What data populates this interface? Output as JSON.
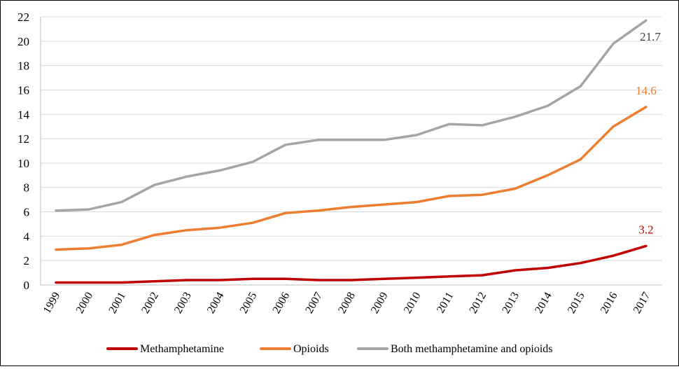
{
  "chart_data": {
    "type": "line",
    "title": "",
    "xlabel": "",
    "ylabel": "",
    "ylim": [
      0,
      22
    ],
    "yticks": [
      0,
      2,
      4,
      6,
      8,
      10,
      12,
      14,
      16,
      18,
      20,
      22
    ],
    "grid": "horizontal",
    "legend": "bottom",
    "categories": [
      "1999",
      "2000",
      "2001",
      "2002",
      "2003",
      "2004",
      "2005",
      "2006",
      "2007",
      "2008",
      "2009",
      "2010",
      "2011",
      "2012",
      "2013",
      "2014",
      "2015",
      "2016",
      "2017"
    ],
    "series": [
      {
        "name": "Methamphetamine",
        "color": "#c00000",
        "values": [
          0.2,
          0.2,
          0.2,
          0.3,
          0.4,
          0.4,
          0.5,
          0.5,
          0.4,
          0.4,
          0.5,
          0.6,
          0.7,
          0.8,
          1.2,
          1.4,
          1.8,
          2.4,
          3.2
        ],
        "end_label": "3.2"
      },
      {
        "name": "Opioids",
        "color": "#ed7d31",
        "values": [
          2.9,
          3.0,
          3.3,
          4.1,
          4.5,
          4.7,
          5.1,
          5.9,
          6.1,
          6.4,
          6.6,
          6.8,
          7.3,
          7.4,
          7.9,
          9.0,
          10.3,
          13.0,
          14.6
        ],
        "end_label": "14.6"
      },
      {
        "name": "Both methamphetamine and opioids",
        "color": "#a5a5a5",
        "values": [
          6.1,
          6.2,
          6.8,
          8.2,
          8.9,
          9.4,
          10.1,
          11.5,
          11.9,
          11.9,
          11.9,
          12.3,
          13.2,
          13.1,
          13.8,
          14.7,
          16.3,
          19.8,
          21.7
        ],
        "end_label": "21.7"
      }
    ]
  }
}
